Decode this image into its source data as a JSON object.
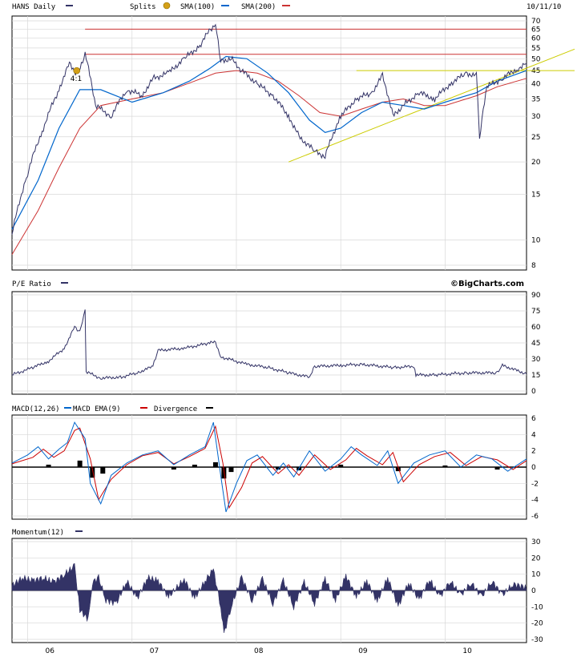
{
  "header": {
    "symbol_label": "HANS Daily",
    "splits_label": "Splits",
    "sma100_label": "SMA(100)",
    "sma200_label": "SMA(200)",
    "date": "10/11/10"
  },
  "brand": "©BigCharts.com",
  "pe_label": "P/E Ratio",
  "macd_labels": {
    "macd": "MACD(12,26)",
    "ema": "MACD EMA(9)",
    "divergence": "Divergence"
  },
  "momentum_label": "Momentum(12)",
  "colors": {
    "price": "#333366",
    "sma100": "#0066cc",
    "sma200": "#cc3333",
    "support": "#cccc00",
    "resistance": "#cc3333",
    "grid": "#d8d8d8",
    "split_icon": "#d4a017"
  },
  "chart_data": [
    {
      "type": "line",
      "title": "HANS Daily",
      "scale": "log",
      "ylim": [
        8,
        70
      ],
      "yticks": [
        8,
        10,
        15,
        20,
        25,
        30,
        35,
        40,
        45,
        50,
        55,
        60,
        65,
        70
      ],
      "x_ticks": [
        "06",
        "07",
        "08",
        "09",
        "10"
      ],
      "x_range": [
        2005.85,
        2010.78
      ],
      "series": [
        {
          "name": "HANS Daily",
          "x": [
            2005.85,
            2006.0,
            2006.15,
            2006.3,
            2006.4,
            2006.48,
            2006.55,
            2006.65,
            2006.8,
            2006.95,
            2007.1,
            2007.2,
            2007.35,
            2007.5,
            2007.65,
            2007.75,
            2007.8,
            2007.85,
            2007.95,
            2008.05,
            2008.2,
            2008.35,
            2008.5,
            2008.6,
            2008.75,
            2008.85,
            2009.0,
            2009.15,
            2009.3,
            2009.4,
            2009.5,
            2009.6,
            2009.75,
            2009.9,
            2010.05,
            2010.2,
            2010.3,
            2010.33,
            2010.4,
            2010.55,
            2010.7,
            2010.78
          ],
          "values": [
            10.5,
            18,
            27,
            38,
            48,
            43,
            52,
            33,
            30,
            38,
            36,
            42,
            44,
            50,
            56,
            65,
            68,
            49,
            50,
            45,
            40,
            36,
            30,
            25,
            22,
            21,
            30,
            35,
            37,
            43,
            30,
            33,
            37,
            35,
            40,
            44,
            43,
            24,
            39,
            42,
            46,
            48
          ]
        },
        {
          "name": "SMA(100)",
          "x": [
            2005.85,
            2006.1,
            2006.3,
            2006.5,
            2006.7,
            2007.0,
            2007.3,
            2007.55,
            2007.75,
            2007.9,
            2008.1,
            2008.3,
            2008.5,
            2008.7,
            2008.85,
            2009.0,
            2009.2,
            2009.4,
            2009.6,
            2009.8,
            2010.0,
            2010.3,
            2010.5,
            2010.78
          ],
          "values": [
            11,
            17,
            27,
            38,
            38,
            34,
            37,
            41,
            46,
            51,
            50,
            44,
            37,
            29,
            26,
            27,
            31,
            34,
            33,
            32,
            34,
            37,
            41,
            45
          ]
        },
        {
          "name": "SMA(200)",
          "x": [
            2005.85,
            2006.1,
            2006.3,
            2006.5,
            2006.7,
            2007.0,
            2007.3,
            2007.6,
            2007.8,
            2008.0,
            2008.2,
            2008.4,
            2008.6,
            2008.8,
            2009.0,
            2009.2,
            2009.4,
            2009.6,
            2009.8,
            2010.0,
            2010.3,
            2010.5,
            2010.78
          ],
          "values": [
            8.8,
            13,
            19,
            27,
            33,
            35,
            37,
            41,
            44,
            45,
            44,
            41,
            36,
            31,
            30,
            32,
            34,
            35,
            33,
            33,
            36,
            39,
            42
          ]
        }
      ],
      "resistance_values": [
        65,
        52
      ],
      "support_values": [
        45
      ],
      "trendline": {
        "x": [
          2008.5,
          2010.78
        ],
        "values": [
          20,
          50
        ]
      },
      "splits": [
        {
          "x": 2006.47,
          "label": "4:1"
        }
      ]
    },
    {
      "type": "line",
      "title": "P/E Ratio",
      "ylim": [
        0,
        90
      ],
      "yticks": [
        0,
        15,
        30,
        45,
        60,
        75,
        90
      ],
      "series": [
        {
          "name": "P/E Ratio",
          "x": [
            2005.85,
            2006.05,
            2006.2,
            2006.35,
            2006.45,
            2006.5,
            2006.55,
            2006.56,
            2006.7,
            2006.9,
            2007.05,
            2007.2,
            2007.25,
            2007.5,
            2007.7,
            2007.8,
            2007.85,
            2008.1,
            2008.3,
            2008.5,
            2008.7,
            2008.75,
            2009.0,
            2009.2,
            2009.5,
            2009.7,
            2009.72,
            2009.9,
            2010.2,
            2010.5,
            2010.55,
            2010.78
          ],
          "values": [
            15,
            22,
            28,
            40,
            60,
            55,
            75,
            18,
            12,
            13,
            17,
            23,
            38,
            40,
            44,
            46,
            32,
            25,
            22,
            17,
            13,
            23,
            24,
            25,
            22,
            23,
            15,
            15,
            17,
            17,
            24,
            16
          ]
        }
      ]
    },
    {
      "type": "line",
      "title": "MACD(12,26)",
      "ylim": [
        -6,
        6
      ],
      "yticks": [
        6,
        4,
        2,
        0,
        -2,
        -4,
        -6
      ],
      "series": [
        {
          "name": "MACD(12,26)",
          "x": [
            2005.85,
            2006.0,
            2006.1,
            2006.2,
            2006.3,
            2006.38,
            2006.45,
            2006.55,
            2006.6,
            2006.7,
            2006.8,
            2006.95,
            2007.1,
            2007.25,
            2007.4,
            2007.55,
            2007.7,
            2007.78,
            2007.85,
            2007.9,
            2008.0,
            2008.1,
            2008.2,
            2008.35,
            2008.45,
            2008.55,
            2008.7,
            2008.85,
            2009.0,
            2009.1,
            2009.2,
            2009.35,
            2009.45,
            2009.55,
            2009.7,
            2009.85,
            2010.0,
            2010.15,
            2010.3,
            2010.45,
            2010.6,
            2010.78
          ],
          "values": [
            0.5,
            1.5,
            2.5,
            1,
            2.2,
            3,
            5.5,
            3.5,
            -2,
            -4.5,
            -1,
            0.5,
            1.5,
            2,
            0.3,
            1.5,
            2.5,
            5.5,
            -1,
            -5.5,
            -2,
            0.8,
            1.5,
            -1,
            0.5,
            -1.2,
            2,
            -0.5,
            1,
            2.5,
            1.5,
            0.2,
            2,
            -2,
            0.5,
            1.5,
            2,
            0,
            1.5,
            1,
            -0.5,
            1
          ]
        },
        {
          "name": "MACD EMA(9)",
          "x": [
            2005.85,
            2006.05,
            2006.15,
            2006.25,
            2006.35,
            2006.45,
            2006.5,
            2006.6,
            2006.68,
            2006.8,
            2006.95,
            2007.1,
            2007.25,
            2007.4,
            2007.55,
            2007.7,
            2007.8,
            2007.87,
            2007.93,
            2008.05,
            2008.15,
            2008.25,
            2008.4,
            2008.5,
            2008.6,
            2008.75,
            2008.9,
            2009.05,
            2009.15,
            2009.25,
            2009.4,
            2009.5,
            2009.6,
            2009.75,
            2009.9,
            2010.05,
            2010.2,
            2010.35,
            2010.5,
            2010.65,
            2010.78
          ],
          "values": [
            0.4,
            1.2,
            2.2,
            1.2,
            2,
            4.5,
            4.8,
            1,
            -4,
            -1.5,
            0.3,
            1.4,
            1.8,
            0.4,
            1.3,
            2.3,
            5,
            0.5,
            -5,
            -2.5,
            0.5,
            1.3,
            -0.8,
            0.3,
            -1,
            1.5,
            -0.3,
            0.9,
            2.3,
            1.4,
            0.3,
            1.8,
            -1.8,
            0.3,
            1.3,
            1.8,
            0.2,
            1.3,
            0.9,
            -0.3,
            0.8
          ]
        },
        {
          "name": "Divergence",
          "x": [
            2006.2,
            2006.5,
            2006.62,
            2006.72,
            2007.4,
            2007.6,
            2007.8,
            2007.88,
            2007.95,
            2008.4,
            2008.6,
            2009.0,
            2009.55,
            2010.0,
            2010.5
          ],
          "values": [
            0.3,
            0.8,
            -1.3,
            -0.8,
            -0.3,
            0.3,
            0.6,
            -1.4,
            -0.6,
            -0.3,
            -0.4,
            0.3,
            -0.5,
            0.2,
            -0.3
          ]
        }
      ]
    },
    {
      "type": "area",
      "title": "Momentum(12)",
      "ylim": [
        -30,
        30
      ],
      "yticks": [
        30,
        20,
        10,
        0,
        -10,
        -20,
        -30
      ],
      "series": [
        {
          "name": "Momentum(12)",
          "x": [
            2005.85,
            2005.95,
            2006.05,
            2006.15,
            2006.25,
            2006.35,
            2006.45,
            2006.5,
            2006.58,
            2006.62,
            2006.68,
            2006.75,
            2006.85,
            2006.95,
            2007.05,
            2007.15,
            2007.25,
            2007.35,
            2007.5,
            2007.6,
            2007.7,
            2007.78,
            2007.85,
            2007.88,
            2007.95,
            2008.05,
            2008.15,
            2008.25,
            2008.35,
            2008.45,
            2008.55,
            2008.65,
            2008.75,
            2008.85,
            2008.95,
            2009.05,
            2009.15,
            2009.25,
            2009.35,
            2009.45,
            2009.55,
            2009.65,
            2009.75,
            2009.85,
            2009.95,
            2010.05,
            2010.15,
            2010.25,
            2010.35,
            2010.45,
            2010.55,
            2010.65,
            2010.78
          ],
          "values": [
            3,
            8,
            6,
            8,
            5,
            10,
            15,
            -12,
            -18,
            5,
            8,
            -6,
            -8,
            6,
            -5,
            8,
            6,
            -4,
            7,
            -5,
            6,
            13,
            -10,
            -27,
            -10,
            8,
            -6,
            7,
            -8,
            6,
            -10,
            5,
            -8,
            7,
            -6,
            9,
            -4,
            6,
            -7,
            8,
            -10,
            5,
            -6,
            7,
            -4,
            6,
            -3,
            5,
            -4,
            6,
            -3,
            4,
            2
          ]
        }
      ]
    }
  ]
}
